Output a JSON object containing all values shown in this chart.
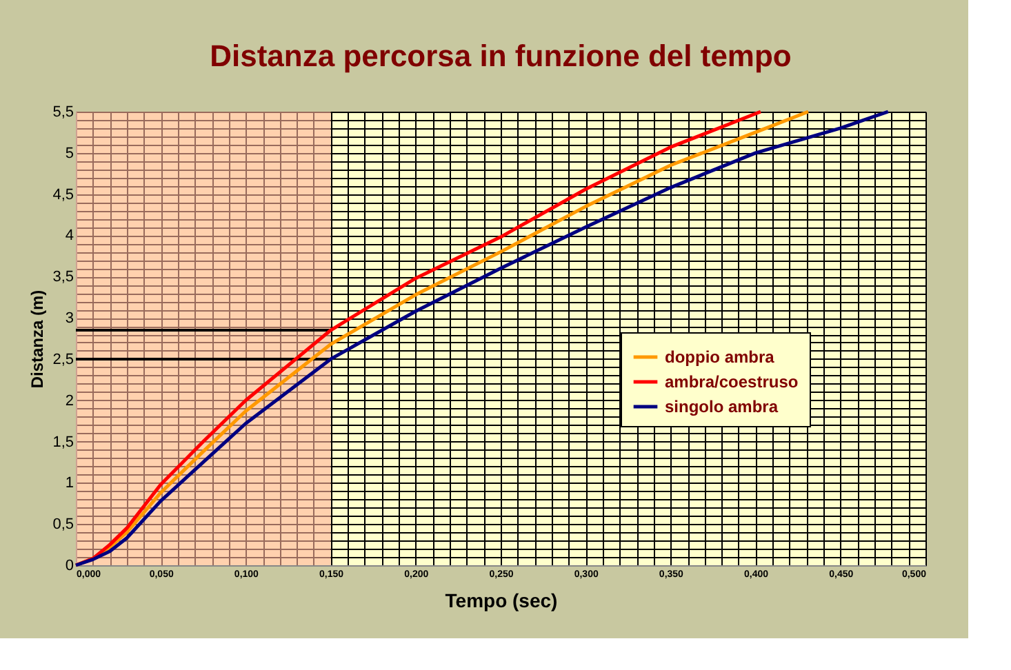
{
  "chart_data": {
    "type": "line",
    "title": "Distanza percorsa in funzione del tempo",
    "xlabel": "Tempo (sec)",
    "ylabel": "Distanza (m)",
    "xlim": [
      0,
      0.5
    ],
    "ylim": [
      0,
      5.5
    ],
    "xticks": [
      {
        "value": 0,
        "label": "0,000"
      },
      {
        "value": 0.01,
        "label": null
      },
      {
        "value": 0.02,
        "label": null
      },
      {
        "value": 0.03,
        "label": null
      },
      {
        "value": 0.04,
        "label": null
      },
      {
        "value": 0.05,
        "label": "0,050"
      },
      {
        "value": 0.06,
        "label": null
      },
      {
        "value": 0.07,
        "label": null
      },
      {
        "value": 0.08,
        "label": null
      },
      {
        "value": 0.09,
        "label": null
      },
      {
        "value": 0.1,
        "label": "0,100"
      },
      {
        "value": 0.11,
        "label": null
      },
      {
        "value": 0.12,
        "label": null
      },
      {
        "value": 0.13,
        "label": null
      },
      {
        "value": 0.14,
        "label": null
      },
      {
        "value": 0.15,
        "label": "0,150"
      },
      {
        "value": 0.16,
        "label": null
      },
      {
        "value": 0.17,
        "label": null
      },
      {
        "value": 0.18,
        "label": null
      },
      {
        "value": 0.19,
        "label": null
      },
      {
        "value": 0.2,
        "label": "0,200"
      },
      {
        "value": 0.21,
        "label": null
      },
      {
        "value": 0.22,
        "label": null
      },
      {
        "value": 0.23,
        "label": null
      },
      {
        "value": 0.24,
        "label": null
      },
      {
        "value": 0.25,
        "label": "0,250"
      },
      {
        "value": 0.26,
        "label": null
      },
      {
        "value": 0.27,
        "label": null
      },
      {
        "value": 0.28,
        "label": null
      },
      {
        "value": 0.29,
        "label": null
      },
      {
        "value": 0.3,
        "label": "0,300"
      },
      {
        "value": 0.31,
        "label": null
      },
      {
        "value": 0.32,
        "label": null
      },
      {
        "value": 0.33,
        "label": null
      },
      {
        "value": 0.34,
        "label": null
      },
      {
        "value": 0.35,
        "label": "0,350"
      },
      {
        "value": 0.36,
        "label": null
      },
      {
        "value": 0.37,
        "label": null
      },
      {
        "value": 0.38,
        "label": null
      },
      {
        "value": 0.39,
        "label": null
      },
      {
        "value": 0.4,
        "label": "0,400"
      },
      {
        "value": 0.41,
        "label": null
      },
      {
        "value": 0.42,
        "label": null
      },
      {
        "value": 0.43,
        "label": null
      },
      {
        "value": 0.44,
        "label": null
      },
      {
        "value": 0.45,
        "label": "0,450"
      },
      {
        "value": 0.46,
        "label": null
      },
      {
        "value": 0.47,
        "label": null
      },
      {
        "value": 0.48,
        "label": null
      },
      {
        "value": 0.49,
        "label": null
      },
      {
        "value": 0.5,
        "label": "0,500"
      }
    ],
    "yticks": [
      0,
      {
        "value": 0.1,
        "label": null
      },
      {
        "value": 0.2,
        "label": null
      },
      {
        "value": 0.3,
        "label": null
      },
      {
        "value": 0.4,
        "label": null
      },
      {
        "value": 0.5,
        "label": "0,5"
      },
      {
        "value": 0.6,
        "label": null
      },
      {
        "value": 0.7,
        "label": null
      },
      {
        "value": 0.8,
        "label": null
      },
      {
        "value": 0.9,
        "label": null
      },
      1,
      {
        "value": 1.1,
        "label": null
      },
      {
        "value": 1.2,
        "label": null
      },
      {
        "value": 1.3,
        "label": null
      },
      {
        "value": 1.4,
        "label": null
      },
      {
        "value": 1.5,
        "label": "1,5"
      },
      {
        "value": 1.6,
        "label": null
      },
      {
        "value": 1.7,
        "label": null
      },
      {
        "value": 1.8,
        "label": null
      },
      {
        "value": 1.9,
        "label": null
      },
      2,
      {
        "value": 2.1,
        "label": null
      },
      {
        "value": 2.2,
        "label": null
      },
      {
        "value": 2.3,
        "label": null
      },
      {
        "value": 2.4,
        "label": null
      },
      {
        "value": 2.5,
        "label": "2,5"
      },
      {
        "value": 2.6,
        "label": null
      },
      {
        "value": 2.7,
        "label": null
      },
      {
        "value": 2.8,
        "label": null
      },
      {
        "value": 2.9,
        "label": null
      },
      3,
      {
        "value": 3.1,
        "label": null
      },
      {
        "value": 3.2,
        "label": null
      },
      {
        "value": 3.3,
        "label": null
      },
      {
        "value": 3.4,
        "label": null
      },
      {
        "value": 3.5,
        "label": "3,5"
      },
      {
        "value": 3.6,
        "label": null
      },
      {
        "value": 3.7,
        "label": null
      },
      {
        "value": 3.8,
        "label": null
      },
      {
        "value": 3.9,
        "label": null
      },
      4,
      {
        "value": 4.1,
        "label": null
      },
      {
        "value": 4.2,
        "label": null
      },
      {
        "value": 4.3,
        "label": null
      },
      {
        "value": 4.4,
        "label": null
      },
      {
        "value": 4.5,
        "label": "4,5"
      },
      {
        "value": 4.6,
        "label": null
      },
      {
        "value": 4.7,
        "label": null
      },
      {
        "value": 4.8,
        "label": null
      },
      {
        "value": 4.9,
        "label": null
      },
      5,
      {
        "value": 5.1,
        "label": null
      },
      {
        "value": 5.2,
        "label": null
      },
      {
        "value": 5.3,
        "label": null
      },
      {
        "value": 5.4,
        "label": null
      },
      {
        "value": 5.5,
        "label": "5,5"
      }
    ],
    "grid": true,
    "legend": "right",
    "line_style": "solid",
    "marker": "none",
    "series": [
      {
        "name": "doppio ambra",
        "color": "#ff9900",
        "x": [
          0,
          0.01,
          0.02,
          0.03,
          0.05,
          0.075,
          0.1,
          0.15,
          0.2,
          0.25,
          0.3,
          0.35,
          0.4,
          0.431
        ],
        "values": [
          0,
          0.08,
          0.22,
          0.4,
          0.88,
          1.38,
          1.87,
          2.68,
          3.28,
          3.8,
          4.35,
          4.85,
          5.25,
          5.5
        ]
      },
      {
        "name": "ambra/coestruso",
        "color": "#ff0000",
        "x": [
          0,
          0.01,
          0.02,
          0.03,
          0.05,
          0.075,
          0.1,
          0.15,
          0.2,
          0.25,
          0.3,
          0.35,
          0.403
        ],
        "values": [
          0,
          0.08,
          0.25,
          0.45,
          0.98,
          1.5,
          2.0,
          2.85,
          3.48,
          3.98,
          4.56,
          5.07,
          5.5
        ]
      },
      {
        "name": "singolo ambra",
        "color": "#000080",
        "x": [
          0,
          0.01,
          0.02,
          0.03,
          0.05,
          0.075,
          0.1,
          0.15,
          0.2,
          0.25,
          0.3,
          0.35,
          0.4,
          0.45,
          0.478
        ],
        "values": [
          0,
          0.07,
          0.17,
          0.33,
          0.78,
          1.25,
          1.72,
          2.5,
          3.08,
          3.6,
          4.1,
          4.58,
          5.0,
          5.3,
          5.5
        ]
      }
    ],
    "bands": [
      {
        "axis": "x",
        "from": 0,
        "to": 0.15,
        "color": "#ffb399"
      }
    ],
    "ref_lines": [
      {
        "axis": "y",
        "value": 2.85,
        "color": "#000000"
      },
      {
        "axis": "y",
        "value": 2.5,
        "color": "#000000"
      }
    ]
  }
}
